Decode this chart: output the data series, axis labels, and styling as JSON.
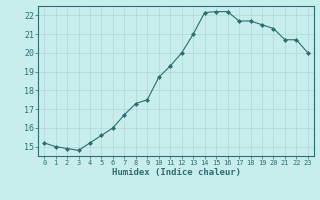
{
  "x": [
    0,
    1,
    2,
    3,
    4,
    5,
    6,
    7,
    8,
    9,
    10,
    11,
    12,
    13,
    14,
    15,
    16,
    17,
    18,
    19,
    20,
    21,
    22,
    23
  ],
  "y": [
    15.2,
    15.0,
    14.9,
    14.8,
    15.2,
    15.6,
    16.0,
    16.7,
    17.3,
    17.5,
    18.7,
    19.3,
    20.0,
    21.0,
    22.15,
    22.2,
    22.2,
    21.7,
    21.7,
    21.5,
    21.3,
    20.7,
    20.7,
    20.0
  ],
  "ylim": [
    14.5,
    22.5
  ],
  "yticks": [
    15,
    16,
    17,
    18,
    19,
    20,
    21,
    22
  ],
  "xticks": [
    0,
    1,
    2,
    3,
    4,
    5,
    6,
    7,
    8,
    9,
    10,
    11,
    12,
    13,
    14,
    15,
    16,
    17,
    18,
    19,
    20,
    21,
    22,
    23
  ],
  "xlabel": "Humidex (Indice chaleur)",
  "line_color": "#2e6e6e",
  "marker_color": "#2e6e6e",
  "bg_color": "#c8eded",
  "grid_color": "#b0d8d8",
  "xlabel_color": "#2e6e6e",
  "tick_color": "#2e6e6e"
}
